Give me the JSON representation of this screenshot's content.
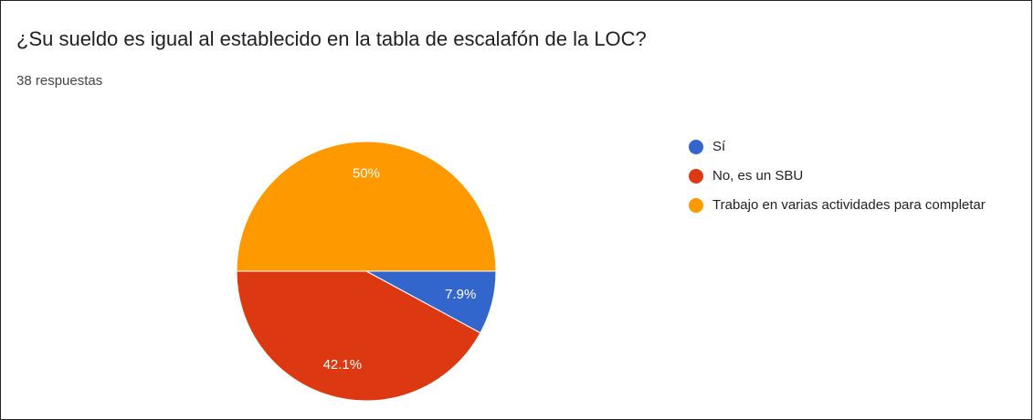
{
  "chart_data": {
    "type": "pie",
    "title": "¿Su sueldo es igual al establecido en la tabla de escalafón de la LOC?",
    "subtitle": "38 respuestas",
    "categories": [
      "Sí",
      "No, es un SBU",
      "Trabajo en varias actividades para completar"
    ],
    "values": [
      7.9,
      42.1,
      50
    ],
    "value_labels": [
      "7.9%",
      "42.1%",
      "50%"
    ],
    "colors": [
      "#3366cc",
      "#dc3912",
      "#ff9900"
    ],
    "legend": "right"
  }
}
